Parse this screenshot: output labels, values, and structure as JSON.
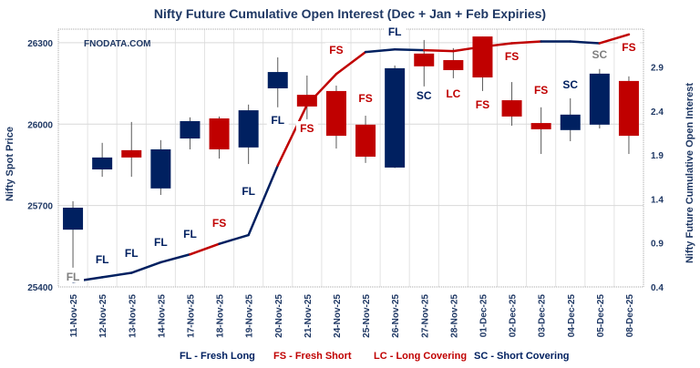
{
  "chart_data": {
    "type": "candlestick+line",
    "title": "Nifty Future Cumulative Open Interest (Dec + Jan  + Feb Expiries)",
    "watermark": "FNODATA.COM",
    "ylabel_left": "Nifty Spot Price",
    "ylabel_right": "Nifty Future Cumulative Open Interest",
    "ylim_left": [
      25400,
      26350
    ],
    "yticks_left": [
      25400,
      25700,
      26000,
      26300
    ],
    "ylim_right": [
      0.4,
      3.33
    ],
    "yticks_right": [
      0.4,
      0.9,
      1.4,
      1.9,
      2.4,
      2.9
    ],
    "grid": true,
    "legend_placement": "bottom",
    "categories": [
      "11-Nov-25",
      "12-Nov-25",
      "13-Nov-25",
      "14-Nov-25",
      "17-Nov-25",
      "18-Nov-25",
      "19-Nov-25",
      "20-Nov-25",
      "21-Nov-25",
      "24-Nov-25",
      "25-Nov-25",
      "26-Nov-25",
      "27-Nov-25",
      "28-Nov-25",
      "01-Dec-25",
      "02-Dec-25",
      "03-Dec-25",
      "04-Dec-25",
      "05-Dec-25",
      "08-Dec-25"
    ],
    "ohlc": [
      [
        25611,
        25716,
        25471,
        25692
      ],
      [
        25833,
        25931,
        25806,
        25877
      ],
      [
        25904,
        26008,
        25806,
        25877
      ],
      [
        25763,
        25941,
        25739,
        25907
      ],
      [
        25947,
        26025,
        25907,
        26011
      ],
      [
        26021,
        26028,
        25873,
        25907
      ],
      [
        25914,
        26072,
        25853,
        26051
      ],
      [
        26132,
        26246,
        26062,
        26192
      ],
      [
        26108,
        26179,
        26018,
        26065
      ],
      [
        26122,
        26142,
        25910,
        25957
      ],
      [
        25998,
        26031,
        25857,
        25880
      ],
      [
        25840,
        26216,
        25838,
        26206
      ],
      [
        26260,
        26310,
        26139,
        26213
      ],
      [
        26236,
        26280,
        26169,
        26199
      ],
      [
        26323,
        26323,
        26122,
        26172
      ],
      [
        26088,
        26155,
        25994,
        26028
      ],
      [
        26004,
        26062,
        25890,
        25981
      ],
      [
        25978,
        26095,
        25937,
        26035
      ],
      [
        25998,
        26203,
        25984,
        26186
      ],
      [
        26159,
        26176,
        25890,
        25957
      ]
    ],
    "open_interest": [
      0.46,
      0.51,
      0.56,
      0.68,
      0.77,
      0.89,
      0.99,
      1.78,
      2.47,
      2.82,
      3.07,
      3.1,
      3.09,
      3.08,
      3.13,
      3.17,
      3.19,
      3.19,
      3.17,
      3.27
    ],
    "signals": [
      "FL",
      "FL",
      "FL",
      "FL",
      "FL",
      "FS",
      "FL",
      "FL",
      "FS",
      "FS",
      "FS",
      "FL",
      "SC",
      "LC",
      "FS",
      "FS",
      "FS",
      "SC",
      "SC",
      "FS"
    ],
    "legend": [
      {
        "code": "FL",
        "text": "FL - Fresh Long",
        "color": "#002060"
      },
      {
        "code": "FS",
        "text": "FS - Fresh Short",
        "color": "#C00000"
      },
      {
        "code": "LC",
        "text": "LC - Long Covering",
        "color": "#C00000"
      },
      {
        "code": "SC",
        "text": "SC - Short Covering",
        "color": "#002060"
      }
    ],
    "colors": {
      "up": "#002060",
      "down": "#C00000",
      "neutral_label": "#7F7F7F",
      "axis_text": "#1F3864"
    }
  }
}
